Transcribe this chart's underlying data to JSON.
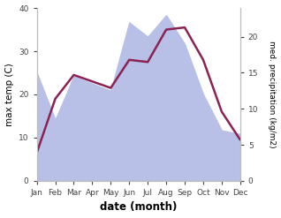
{
  "months": [
    "Jan",
    "Feb",
    "Mar",
    "Apr",
    "May",
    "Jun",
    "Jul",
    "Aug",
    "Sep",
    "Oct",
    "Nov",
    "Dec"
  ],
  "max_temp": [
    6.5,
    19.0,
    24.5,
    23.0,
    21.5,
    28.0,
    27.5,
    35.0,
    35.5,
    28.0,
    16.0,
    9.5
  ],
  "precipitation": [
    15.0,
    8.5,
    14.5,
    13.5,
    12.5,
    22.0,
    20.0,
    23.0,
    19.0,
    12.0,
    7.0,
    6.5
  ],
  "temp_color": "#8b2252",
  "precip_fill_color": "#b8c0e8",
  "temp_ylim": [
    0,
    40
  ],
  "precip_ylim": [
    0,
    24
  ],
  "left_yticks": [
    0,
    10,
    20,
    30,
    40
  ],
  "right_yticks": [
    0,
    5,
    10,
    15,
    20
  ],
  "xlabel": "date (month)",
  "ylabel_left": "max temp (C)",
  "ylabel_right": "med. precipitation (kg/m2)",
  "bg_color": "#ffffff",
  "line_width": 1.8
}
